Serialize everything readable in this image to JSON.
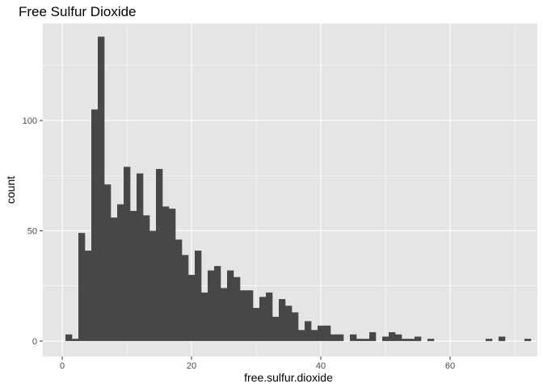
{
  "chart_data": {
    "type": "bar",
    "title": "Free Sulfur Dioxide",
    "xlabel": "free.sulfur.dioxide",
    "ylabel": "count",
    "bin_width": 1,
    "xlim": [
      -3,
      73.5
    ],
    "ylim": [
      -7,
      144
    ],
    "x_ticks": [
      0,
      20,
      40,
      60
    ],
    "y_ticks": [
      0,
      50,
      100
    ],
    "grid": true,
    "bins": [
      {
        "x": 1,
        "count": 3
      },
      {
        "x": 2,
        "count": 1
      },
      {
        "x": 3,
        "count": 49
      },
      {
        "x": 4,
        "count": 41
      },
      {
        "x": 5,
        "count": 105
      },
      {
        "x": 6,
        "count": 138
      },
      {
        "x": 7,
        "count": 71
      },
      {
        "x": 8,
        "count": 56
      },
      {
        "x": 9,
        "count": 62
      },
      {
        "x": 10,
        "count": 79
      },
      {
        "x": 11,
        "count": 59
      },
      {
        "x": 12,
        "count": 76
      },
      {
        "x": 13,
        "count": 57
      },
      {
        "x": 14,
        "count": 50
      },
      {
        "x": 15,
        "count": 78
      },
      {
        "x": 16,
        "count": 61
      },
      {
        "x": 17,
        "count": 60
      },
      {
        "x": 18,
        "count": 46
      },
      {
        "x": 19,
        "count": 39
      },
      {
        "x": 20,
        "count": 30
      },
      {
        "x": 21,
        "count": 41
      },
      {
        "x": 22,
        "count": 22
      },
      {
        "x": 23,
        "count": 32
      },
      {
        "x": 24,
        "count": 34
      },
      {
        "x": 25,
        "count": 24
      },
      {
        "x": 26,
        "count": 32
      },
      {
        "x": 27,
        "count": 29
      },
      {
        "x": 28,
        "count": 23
      },
      {
        "x": 29,
        "count": 23
      },
      {
        "x": 30,
        "count": 15
      },
      {
        "x": 31,
        "count": 20
      },
      {
        "x": 32,
        "count": 22
      },
      {
        "x": 33,
        "count": 11
      },
      {
        "x": 34,
        "count": 19
      },
      {
        "x": 35,
        "count": 16
      },
      {
        "x": 36,
        "count": 13
      },
      {
        "x": 37,
        "count": 5
      },
      {
        "x": 38,
        "count": 9
      },
      {
        "x": 39,
        "count": 5
      },
      {
        "x": 40,
        "count": 7
      },
      {
        "x": 41,
        "count": 7
      },
      {
        "x": 42,
        "count": 3
      },
      {
        "x": 43,
        "count": 3
      },
      {
        "x": 45,
        "count": 3
      },
      {
        "x": 46,
        "count": 1
      },
      {
        "x": 47,
        "count": 1
      },
      {
        "x": 48,
        "count": 4
      },
      {
        "x": 50,
        "count": 2
      },
      {
        "x": 51,
        "count": 4
      },
      {
        "x": 52,
        "count": 3
      },
      {
        "x": 53,
        "count": 1
      },
      {
        "x": 54,
        "count": 1
      },
      {
        "x": 55,
        "count": 2
      },
      {
        "x": 57,
        "count": 1
      },
      {
        "x": 66,
        "count": 1
      },
      {
        "x": 68,
        "count": 2
      },
      {
        "x": 72,
        "count": 1
      }
    ],
    "colors": {
      "panel": "#e5e5e5",
      "grid": "#ffffff",
      "bar": "#474747",
      "tick_text": "#4d4d4d",
      "tick_mark": "#333333"
    }
  }
}
